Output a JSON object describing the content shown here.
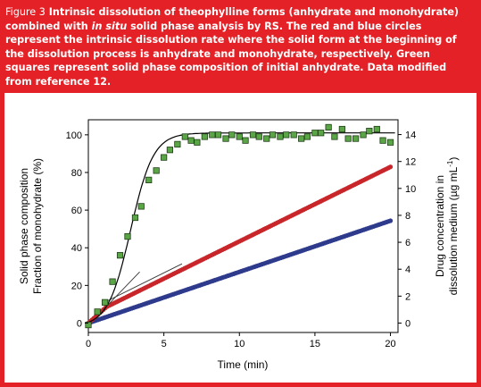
{
  "caption": {
    "label": "Figure 3",
    "part1": " Intrinsic dissolution of theophylline forms (anhydrate and monohydrate) combined with ",
    "italic": "in situ",
    "part2": " solid phase analysis by RS. The red and blue circles represent the intrinsic dissolution rate where the solid form at the beginning of the dissolution process is anhydrate and monohydrate, respectively. Green squares represent solid phase composition of initial anhydrate. Data modified from reference 12."
  },
  "colors": {
    "frame": "#e32126",
    "anhydrate_series": "#c8262a",
    "monohydrate_series": "#2e3a8c",
    "solid_phase_points": "#5aa646"
  },
  "chart_data": {
    "type": "scatter",
    "x": {
      "label": "Time (min)",
      "range": [
        0,
        20.5
      ],
      "ticks": [
        0,
        5,
        10,
        15,
        20
      ]
    },
    "y_left": {
      "label_line1": "Solid phase composition",
      "label_line2": "Fraction of monohydrate (%)",
      "range": [
        -5,
        108
      ],
      "ticks": [
        0,
        20,
        40,
        60,
        80,
        100
      ]
    },
    "y_right": {
      "label_line1": "Drug concentration in",
      "label_line2": "dissolution medium (µg mL",
      "label_sup": "-1",
      "label_end": ")",
      "range": [
        -0.7,
        15.1
      ],
      "ticks": [
        0,
        2,
        4,
        6,
        8,
        10,
        12,
        14
      ]
    },
    "series": [
      {
        "axis": "left",
        "marker": "square",
        "x": [
          0.0,
          0.6,
          1.1,
          1.6,
          2.1,
          2.6,
          3.1,
          3.5,
          4.0,
          4.5,
          5.0,
          5.4,
          5.9,
          6.4,
          6.8,
          7.2,
          7.7,
          8.2,
          8.6,
          9.1,
          9.5,
          10.0,
          10.4,
          10.9,
          11.3,
          11.8,
          12.2,
          12.7,
          13.1,
          13.6,
          14.1,
          14.5,
          15.0,
          15.4,
          15.9,
          16.3,
          16.8,
          17.2,
          17.7,
          18.2,
          18.6,
          19.1,
          19.5,
          20.0
        ],
        "y": [
          -1,
          6,
          11,
          22,
          36,
          46,
          56,
          62,
          76,
          81,
          88,
          92,
          95,
          99,
          97,
          96,
          99,
          100,
          100,
          98,
          100,
          99,
          97,
          100,
          99,
          98,
          100,
          99,
          100,
          100,
          98,
          99,
          101,
          101,
          104,
          99,
          103,
          98,
          98,
          100,
          102,
          103,
          97,
          96
        ]
      },
      {
        "axis": "right",
        "marker": "circle",
        "x_start": 0.0,
        "x_end": 20.0,
        "y_start": 0.0,
        "y_end": 11.6,
        "note": "anhydrate: initial slope ~1.0 then ~0.55 per min"
      },
      {
        "axis": "right",
        "marker": "circle",
        "x_start": 0.0,
        "x_end": 20.0,
        "y_start": 0.0,
        "y_end": 7.6
      }
    ],
    "fit_curve": {
      "axis": "left",
      "model": "sigmoid",
      "plateau": 101,
      "note": "solid line through green squares"
    },
    "tangent_lines": [
      {
        "axis": "right",
        "x": [
          1.0,
          3.4
        ],
        "y": [
          1.0,
          3.8
        ]
      },
      {
        "axis": "right",
        "x": [
          1.0,
          6.2
        ],
        "y": [
          1.5,
          4.4
        ]
      }
    ]
  }
}
